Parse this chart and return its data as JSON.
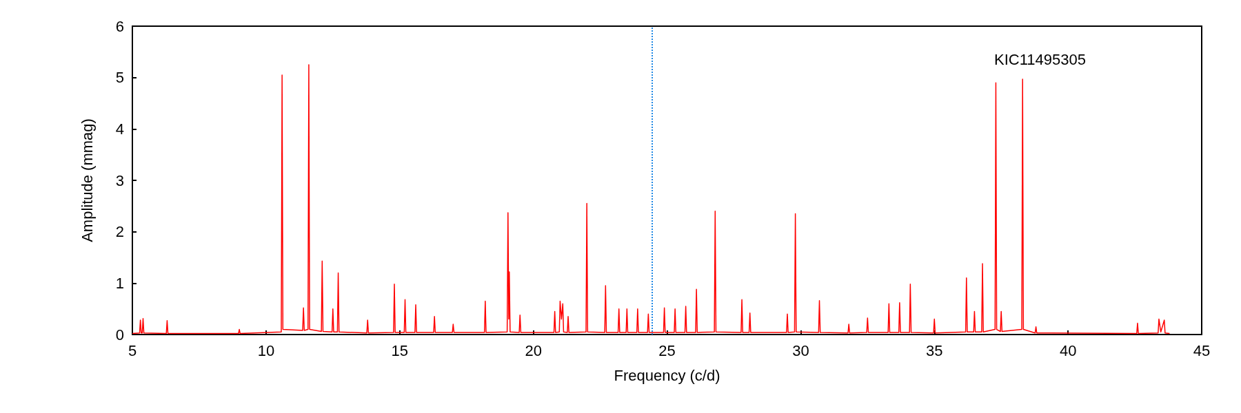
{
  "chart_data": {
    "type": "line",
    "xlabel": "Frequency (c/d)",
    "ylabel": "Amplitude (mmag)",
    "annotations": [
      "KIC11495305"
    ],
    "xlim": [
      5,
      45
    ],
    "xticks": [
      5,
      10,
      15,
      20,
      25,
      30,
      35,
      40,
      45
    ],
    "ylim": [
      0,
      6
    ],
    "yticks": [
      0,
      1,
      2,
      3,
      4,
      5,
      6
    ],
    "grid": false,
    "marker": "none",
    "line_style": "solid",
    "ref_lines": [
      {
        "axis": "x",
        "value": 24.45,
        "color": "#1e88e5",
        "line_style": "dotted"
      }
    ],
    "series": [
      {
        "color": "#ff0000",
        "x": [
          5,
          5.27,
          5.3,
          5.33,
          5.37,
          5.4,
          5.43,
          6.27,
          6.3,
          6.33,
          8.97,
          9,
          9.03,
          10.57,
          10.6,
          10.63,
          11.37,
          11.4,
          11.43,
          11.57,
          11.6,
          11.63,
          12.07,
          12.1,
          12.13,
          12.47,
          12.5,
          12.53,
          12.67,
          12.7,
          12.73,
          13.77,
          13.8,
          13.83,
          14.77,
          14.8,
          14.83,
          15.17,
          15.2,
          15.23,
          15.57,
          15.6,
          15.63,
          16.27,
          16.3,
          16.33,
          16.97,
          17,
          17.03,
          18.17,
          18.2,
          18.23,
          19.02,
          19.05,
          19.08,
          19.1,
          19.13,
          19.47,
          19.5,
          19.53,
          20.77,
          20.8,
          20.83,
          20.97,
          21,
          21.05,
          21.1,
          21.13,
          21.27,
          21.3,
          21.33,
          21.97,
          22,
          22.03,
          22.67,
          22.7,
          22.73,
          23.17,
          23.2,
          23.23,
          23.47,
          23.5,
          23.53,
          23.87,
          23.9,
          23.93,
          24.27,
          24.3,
          24.33,
          24.87,
          24.9,
          24.93,
          25.27,
          25.3,
          25.33,
          25.67,
          25.7,
          25.73,
          26.07,
          26.1,
          26.13,
          26.77,
          26.8,
          26.83,
          27.77,
          27.8,
          27.83,
          28.07,
          28.1,
          28.13,
          29.47,
          29.5,
          29.53,
          29.77,
          29.8,
          29.83,
          30.67,
          30.7,
          30.73,
          31.77,
          31.8,
          31.83,
          32.47,
          32.5,
          32.53,
          33.27,
          33.3,
          33.33,
          33.67,
          33.7,
          33.73,
          34.07,
          34.1,
          34.13,
          34.97,
          35,
          35.03,
          36.17,
          36.2,
          36.23,
          36.47,
          36.5,
          36.53,
          36.77,
          36.8,
          36.83,
          37.27,
          37.3,
          37.33,
          37.47,
          37.5,
          37.53,
          38.27,
          38.3,
          38.33,
          38.77,
          38.8,
          38.83,
          42.57,
          42.6,
          42.63,
          43.37,
          43.4,
          43.47,
          43.6,
          43.63,
          43.8
        ],
        "values": [
          0.02,
          0.03,
          0.28,
          0.03,
          0.03,
          0.31,
          0.03,
          0.02,
          0.27,
          0.02,
          0.02,
          0.1,
          0.02,
          0.05,
          5.05,
          0.1,
          0.08,
          0.52,
          0.08,
          0.1,
          5.25,
          0.1,
          0.06,
          1.43,
          0.06,
          0.05,
          0.5,
          0.05,
          0.05,
          1.2,
          0.05,
          0.03,
          0.28,
          0.03,
          0.04,
          0.98,
          0.04,
          0.04,
          0.68,
          0.04,
          0.04,
          0.58,
          0.04,
          0.04,
          0.35,
          0.04,
          0.04,
          0.2,
          0.04,
          0.04,
          0.65,
          0.04,
          0.05,
          2.37,
          0.3,
          1.22,
          0.05,
          0.04,
          0.38,
          0.04,
          0.04,
          0.45,
          0.04,
          0.05,
          0.65,
          0.3,
          0.6,
          0.05,
          0.04,
          0.35,
          0.04,
          0.05,
          2.55,
          0.05,
          0.04,
          0.95,
          0.04,
          0.04,
          0.5,
          0.04,
          0.04,
          0.5,
          0.04,
          0.04,
          0.5,
          0.04,
          0.04,
          0.4,
          0.04,
          0.04,
          0.52,
          0.04,
          0.04,
          0.5,
          0.04,
          0.04,
          0.55,
          0.04,
          0.04,
          0.88,
          0.04,
          0.05,
          2.4,
          0.05,
          0.04,
          0.68,
          0.04,
          0.04,
          0.42,
          0.04,
          0.04,
          0.4,
          0.04,
          0.05,
          2.35,
          0.05,
          0.04,
          0.66,
          0.04,
          0.03,
          0.2,
          0.03,
          0.04,
          0.32,
          0.04,
          0.04,
          0.6,
          0.04,
          0.04,
          0.62,
          0.04,
          0.04,
          0.98,
          0.04,
          0.03,
          0.3,
          0.03,
          0.05,
          1.1,
          0.05,
          0.05,
          0.45,
          0.05,
          0.05,
          1.38,
          0.05,
          0.1,
          4.9,
          0.1,
          0.06,
          0.45,
          0.06,
          0.1,
          4.97,
          0.1,
          0.03,
          0.15,
          0.03,
          0.02,
          0.22,
          0.02,
          0.03,
          0.3,
          0.05,
          0.28,
          0.03,
          0.02
        ]
      }
    ]
  }
}
